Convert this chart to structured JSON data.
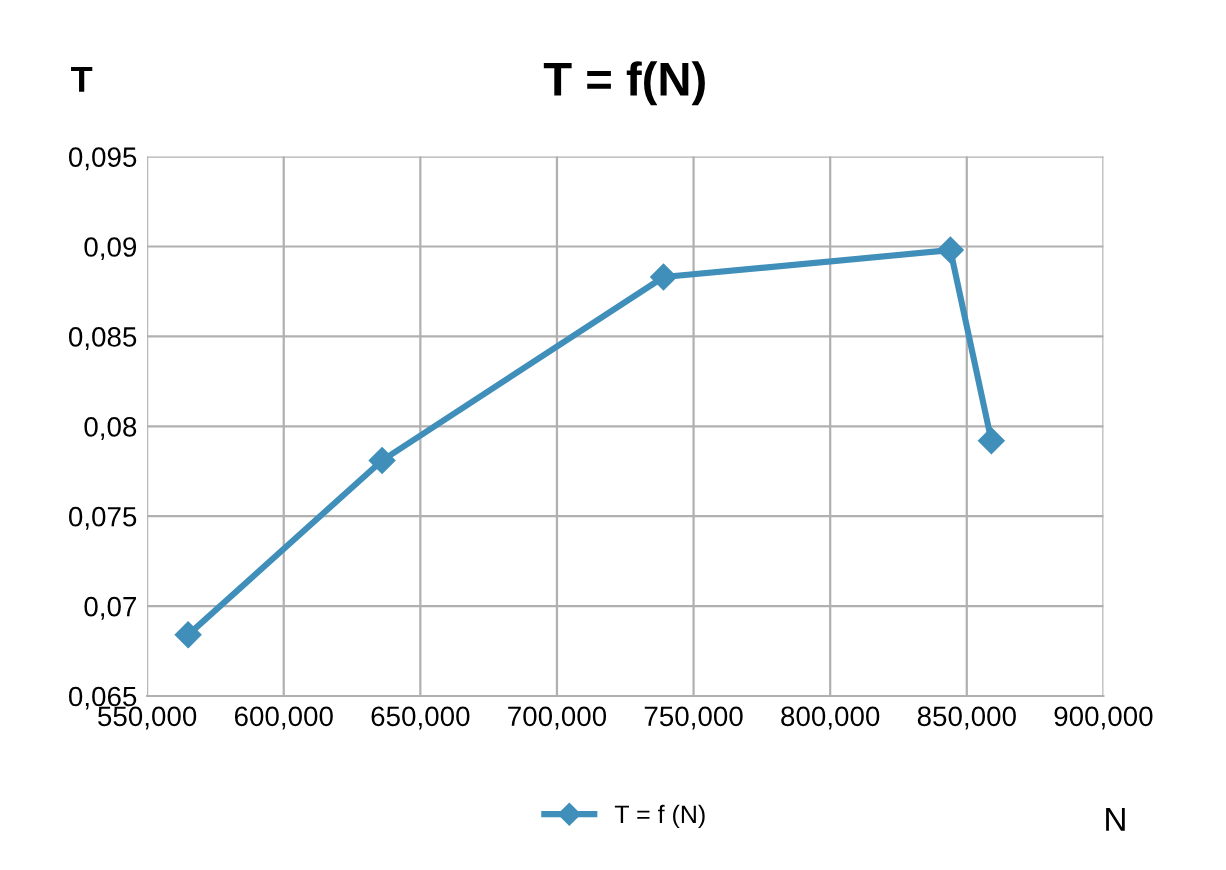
{
  "chart_data": {
    "type": "line",
    "title": "T = f(N)",
    "xlabel": "N",
    "ylabel": "T",
    "x": [
      565,
      636,
      739,
      844,
      859
    ],
    "series": [
      {
        "name": "T = f (N)",
        "color": "#3f8fba",
        "values": [
          0.0684,
          0.0781,
          0.0883,
          0.0898,
          0.0792
        ]
      }
    ],
    "xlim": [
      550,
      900
    ],
    "xticks": [
      {
        "value": 550,
        "label": "550,000"
      },
      {
        "value": 600,
        "label": "600,000"
      },
      {
        "value": 650,
        "label": "650,000"
      },
      {
        "value": 700,
        "label": "700,000"
      },
      {
        "value": 750,
        "label": "750,000"
      },
      {
        "value": 800,
        "label": "800,000"
      },
      {
        "value": 850,
        "label": "850,000"
      },
      {
        "value": 900,
        "label": "900,000"
      }
    ],
    "ylim": [
      0.065,
      0.095
    ],
    "yticks": [
      {
        "value": 0.065,
        "label": "0,065"
      },
      {
        "value": 0.07,
        "label": "0,07"
      },
      {
        "value": 0.075,
        "label": "0,075"
      },
      {
        "value": 0.08,
        "label": "0,08"
      },
      {
        "value": 0.085,
        "label": "0,085"
      },
      {
        "value": 0.09,
        "label": "0,09"
      },
      {
        "value": 0.095,
        "label": "0,095"
      }
    ],
    "grid": true,
    "legend": "bottom",
    "marker": "diamond",
    "line_style": "solid"
  }
}
